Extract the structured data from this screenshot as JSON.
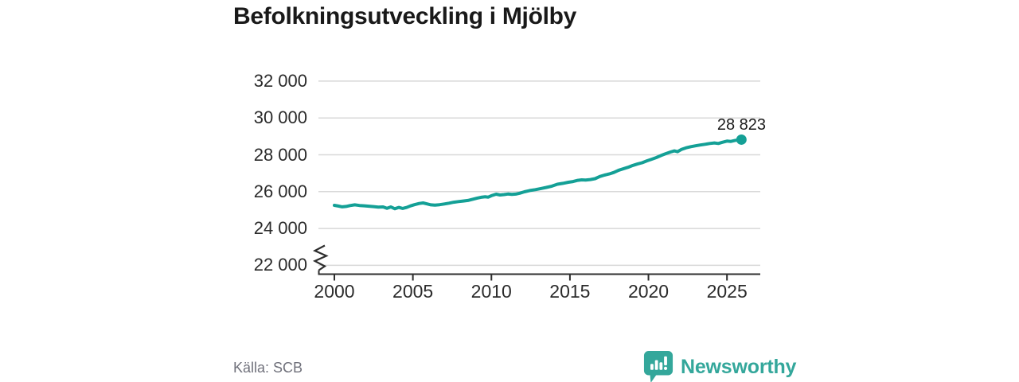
{
  "page": {
    "title": "Befolkningsutveckling i Mjölby"
  },
  "footer": {
    "source": "Källa: SCB",
    "brand": "Newsworthy",
    "logo_icon": "newsworthy-speech-bubble-barchart-icon"
  },
  "colors": {
    "line": "#14a096",
    "logo": "#34a79b",
    "grid": "#d8d8d8",
    "axis": "#2e2e2e",
    "title": "#191919",
    "tick_label": "#2b2b2b",
    "source_text": "#70717b",
    "end_label": "#1b1b1b"
  },
  "chart_data": {
    "type": "line",
    "title": "Befolkningsutveckling i Mjölby",
    "xlabel": "",
    "ylabel": "",
    "legend": "none",
    "grid": "horizontal",
    "axis_break_at_bottom": true,
    "xlim": [
      1999,
      2027.1
    ],
    "ylim": [
      22000,
      32000
    ],
    "x_ticks": [
      {
        "value": 2000,
        "label": "2000"
      },
      {
        "value": 2005,
        "label": "2005"
      },
      {
        "value": 2010,
        "label": "2010"
      },
      {
        "value": 2015,
        "label": "2015"
      },
      {
        "value": 2020,
        "label": "2020"
      },
      {
        "value": 2025,
        "label": "2025"
      }
    ],
    "y_ticks": [
      {
        "value": 32000,
        "label": "32 000"
      },
      {
        "value": 30000,
        "label": "30 000"
      },
      {
        "value": 28000,
        "label": "28 000"
      },
      {
        "value": 26000,
        "label": "26 000"
      },
      {
        "value": 24000,
        "label": "24 000"
      },
      {
        "value": 22000,
        "label": "22 000"
      }
    ],
    "end_label": "28 823",
    "end_value": 28823,
    "series": [
      {
        "name": "Befolkning i Mjölby",
        "color": "#14a096",
        "points": [
          [
            2000.0,
            25255
          ],
          [
            2000.25,
            25220
          ],
          [
            2000.5,
            25175
          ],
          [
            2000.75,
            25195
          ],
          [
            2001.0,
            25245
          ],
          [
            2001.3,
            25285
          ],
          [
            2001.6,
            25250
          ],
          [
            2001.9,
            25230
          ],
          [
            2002.2,
            25210
          ],
          [
            2002.5,
            25190
          ],
          [
            2002.8,
            25160
          ],
          [
            2003.1,
            25170
          ],
          [
            2003.35,
            25095
          ],
          [
            2003.6,
            25170
          ],
          [
            2003.85,
            25070
          ],
          [
            2004.1,
            25145
          ],
          [
            2004.35,
            25090
          ],
          [
            2004.6,
            25140
          ],
          [
            2004.85,
            25225
          ],
          [
            2005.1,
            25290
          ],
          [
            2005.4,
            25355
          ],
          [
            2005.65,
            25385
          ],
          [
            2005.9,
            25335
          ],
          [
            2006.15,
            25285
          ],
          [
            2006.4,
            25265
          ],
          [
            2006.7,
            25290
          ],
          [
            2007.0,
            25330
          ],
          [
            2007.3,
            25375
          ],
          [
            2007.6,
            25425
          ],
          [
            2007.9,
            25460
          ],
          [
            2008.2,
            25490
          ],
          [
            2008.5,
            25520
          ],
          [
            2008.8,
            25585
          ],
          [
            2009.1,
            25650
          ],
          [
            2009.4,
            25700
          ],
          [
            2009.6,
            25720
          ],
          [
            2009.8,
            25700
          ],
          [
            2010.0,
            25780
          ],
          [
            2010.3,
            25860
          ],
          [
            2010.55,
            25820
          ],
          [
            2010.8,
            25840
          ],
          [
            2011.05,
            25870
          ],
          [
            2011.3,
            25850
          ],
          [
            2011.55,
            25865
          ],
          [
            2011.8,
            25915
          ],
          [
            2012.1,
            25990
          ],
          [
            2012.45,
            26060
          ],
          [
            2012.8,
            26110
          ],
          [
            2013.15,
            26170
          ],
          [
            2013.5,
            26230
          ],
          [
            2013.85,
            26300
          ],
          [
            2014.2,
            26400
          ],
          [
            2014.55,
            26450
          ],
          [
            2014.9,
            26510
          ],
          [
            2015.2,
            26550
          ],
          [
            2015.5,
            26615
          ],
          [
            2015.75,
            26640
          ],
          [
            2016.0,
            26630
          ],
          [
            2016.3,
            26655
          ],
          [
            2016.6,
            26705
          ],
          [
            2016.9,
            26820
          ],
          [
            2017.2,
            26900
          ],
          [
            2017.5,
            26960
          ],
          [
            2017.8,
            27040
          ],
          [
            2018.1,
            27160
          ],
          [
            2018.4,
            27240
          ],
          [
            2018.7,
            27320
          ],
          [
            2019.0,
            27420
          ],
          [
            2019.3,
            27500
          ],
          [
            2019.6,
            27570
          ],
          [
            2019.9,
            27670
          ],
          [
            2020.2,
            27760
          ],
          [
            2020.5,
            27850
          ],
          [
            2020.8,
            27960
          ],
          [
            2021.1,
            28060
          ],
          [
            2021.4,
            28150
          ],
          [
            2021.65,
            28210
          ],
          [
            2021.85,
            28170
          ],
          [
            2022.1,
            28290
          ],
          [
            2022.4,
            28380
          ],
          [
            2022.7,
            28440
          ],
          [
            2023.0,
            28490
          ],
          [
            2023.3,
            28530
          ],
          [
            2023.6,
            28570
          ],
          [
            2023.9,
            28615
          ],
          [
            2024.2,
            28645
          ],
          [
            2024.45,
            28615
          ],
          [
            2024.7,
            28680
          ],
          [
            2025.0,
            28745
          ],
          [
            2025.25,
            28725
          ],
          [
            2025.55,
            28785
          ],
          [
            2025.92,
            28823
          ]
        ]
      }
    ]
  }
}
